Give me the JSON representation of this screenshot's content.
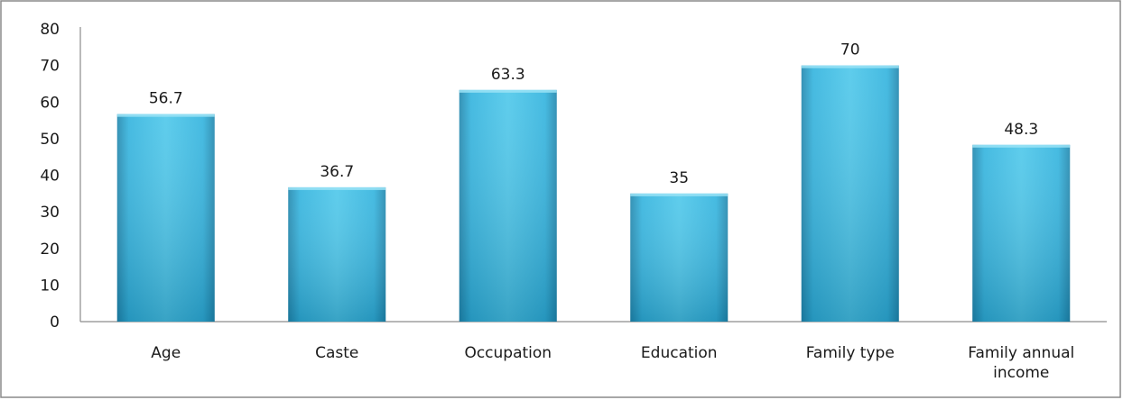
{
  "chart_data": {
    "type": "bar",
    "title": "",
    "xlabel": "",
    "ylabel": "",
    "categories": [
      "Age",
      "Caste",
      "Occupation",
      "Education",
      "Family type",
      "Family annual income"
    ],
    "category_lines": [
      [
        "Age"
      ],
      [
        "Caste"
      ],
      [
        "Occupation"
      ],
      [
        "Education"
      ],
      [
        "Family type"
      ],
      [
        "Family annual",
        "income"
      ]
    ],
    "values": [
      56.7,
      36.7,
      63.3,
      35,
      70,
      48.3
    ],
    "data_labels": [
      "56.7",
      "36.7",
      "63.3",
      "35",
      "70",
      "48.3"
    ],
    "ylim": [
      0,
      80
    ],
    "yticks": [
      0,
      10,
      20,
      30,
      40,
      50,
      60,
      70,
      80
    ],
    "grid": false,
    "legend": "none",
    "colors": {
      "bar_light": "#4cc7ea",
      "bar_mid": "#31b3de",
      "bar_dark": "#1f86ad",
      "axis": "#8c8c8c",
      "frame": "#8a8a8a"
    }
  }
}
